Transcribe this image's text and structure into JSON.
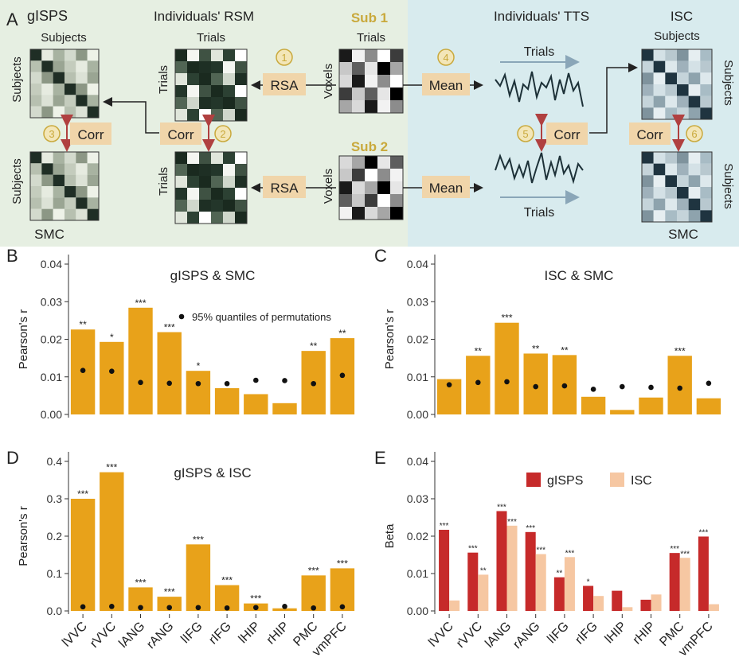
{
  "schematic": {
    "panel_letter": "A",
    "glsps_title": "gISPS",
    "glsps_top_label": "Subjects",
    "glsps_left_label": "Subjects",
    "glsps_bottom_left_label": "Subjects",
    "smc_label": "SMC",
    "rsm_title": "Individuals' RSM",
    "rsm_top_label": "Trials",
    "rsm_left_label": "Trials",
    "rsm_bottom_left_label": "Trials",
    "sub1": "Sub 1",
    "sub2": "Sub 2",
    "sub1_top_label": "Trials",
    "voxels_label": "Voxels",
    "tts_title": "Individuals' TTS",
    "trials_top": "Trials",
    "trials_bottom": "Trials",
    "isc_title": "ISC",
    "isc_top_label": "Subjects",
    "isc_right_label": "Subjects",
    "isc_bottom_right_label": "Subjects",
    "smc_right_label": "SMC",
    "rsa_label": "RSA",
    "mean_label": "Mean",
    "corr_label": "Corr",
    "step_1": "1",
    "step_2": "2",
    "step_3": "3",
    "step_4": "4",
    "step_5": "5",
    "step_6": "6",
    "colors": {
      "left_bg": "#e6efe2",
      "right_bg": "#d8ebee",
      "tag": "#f0d5aa",
      "step": "#c9a93c",
      "sub": "#c9a93c"
    }
  },
  "chart_data": [
    {
      "panel": "B",
      "type": "bar",
      "title": "gISPS & SMC",
      "ylabel": "Pearson's r",
      "ylim": [
        0,
        0.04
      ],
      "yticks": [
        "0.00",
        "0.01",
        "0.02",
        "0.03",
        "0.04"
      ],
      "categories": [
        "lVVC",
        "rVVC",
        "lANG",
        "rANG",
        "lIFG",
        "rIFG",
        "lHIP",
        "rHIP",
        "PMC",
        "vmPFC"
      ],
      "values": [
        0.0226,
        0.0193,
        0.0284,
        0.0219,
        0.0116,
        0.007,
        0.0054,
        0.003,
        0.0169,
        0.0203
      ],
      "perm_95": [
        0.0117,
        0.0115,
        0.0085,
        0.0083,
        0.0082,
        0.0082,
        0.0091,
        0.009,
        0.0082,
        0.0104
      ],
      "significance": [
        "**",
        "*",
        "***",
        "***",
        "*",
        "",
        "",
        "",
        "**",
        "**"
      ],
      "legend": "95% quantiles of permutations",
      "bar_color": "#e8a21a"
    },
    {
      "panel": "C",
      "type": "bar",
      "title": "ISC & SMC",
      "ylabel": "Pearson's r",
      "ylim": [
        0,
        0.04
      ],
      "yticks": [
        "0.00",
        "0.01",
        "0.02",
        "0.03",
        "0.04"
      ],
      "categories": [
        "lVVC",
        "rVVC",
        "lANG",
        "rANG",
        "lIFG",
        "rIFG",
        "lHIP",
        "rHIP",
        "PMC",
        "vmPFC"
      ],
      "values": [
        0.0094,
        0.0156,
        0.0244,
        0.0162,
        0.0158,
        0.0047,
        0.0012,
        0.0045,
        0.0156,
        0.0043
      ],
      "perm_95": [
        0.0079,
        0.0085,
        0.0087,
        0.0074,
        0.0076,
        0.0067,
        0.0074,
        0.0072,
        0.007,
        0.0083
      ],
      "significance": [
        "",
        "**",
        "***",
        "**",
        "**",
        "",
        "",
        "",
        "***",
        ""
      ],
      "bar_color": "#e8a21a"
    },
    {
      "panel": "D",
      "type": "bar",
      "title": "gISPS & ISC",
      "ylabel": "Pearson's r",
      "ylim": [
        0,
        0.4
      ],
      "yticks": [
        "0.0",
        "0.1",
        "0.2",
        "0.3",
        "0.4"
      ],
      "categories": [
        "lVVC",
        "rVVC",
        "lANG",
        "rANG",
        "lIFG",
        "rIFG",
        "lHIP",
        "rHIP",
        "PMC",
        "vmPFC"
      ],
      "values": [
        0.3,
        0.371,
        0.063,
        0.038,
        0.178,
        0.069,
        0.02,
        0.007,
        0.095,
        0.114
      ],
      "perm_95": [
        0.011,
        0.012,
        0.009,
        0.009,
        0.009,
        0.008,
        0.009,
        0.012,
        0.008,
        0.011
      ],
      "significance": [
        "***",
        "***",
        "***",
        "***",
        "***",
        "***",
        "***",
        "",
        "***",
        "***"
      ],
      "bar_color": "#e8a21a"
    },
    {
      "panel": "E",
      "type": "bar",
      "ylabel": "Beta",
      "ylim": [
        0,
        0.04
      ],
      "yticks": [
        "0.00",
        "0.01",
        "0.02",
        "0.03",
        "0.04"
      ],
      "categories": [
        "lVVC",
        "rVVC",
        "lANG",
        "rANG",
        "lIFG",
        "rIFG",
        "lHIP",
        "rHIP",
        "PMC",
        "vmPFC"
      ],
      "series": [
        {
          "name": "gISPS",
          "color": "#c62a2a",
          "values": [
            0.0217,
            0.0156,
            0.0267,
            0.0211,
            0.009,
            0.0067,
            0.0054,
            0.003,
            0.0155,
            0.0199
          ],
          "significance": [
            "***",
            "***",
            "***",
            "***",
            "**",
            "*",
            "",
            "",
            "***",
            "***"
          ]
        },
        {
          "name": "ISC",
          "color": "#f6c7a2",
          "values": [
            0.0028,
            0.0097,
            0.0228,
            0.0152,
            0.0144,
            0.004,
            0.001,
            0.0044,
            0.0142,
            0.0018
          ],
          "significance": [
            "",
            "**",
            "***",
            "***",
            "***",
            "",
            "",
            "",
            "***",
            ""
          ]
        }
      ]
    }
  ]
}
